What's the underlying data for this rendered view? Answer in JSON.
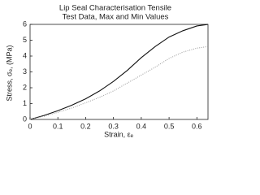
{
  "chart_data": {
    "type": "line",
    "title": [
      "Lip Seal Characterisation Tensile",
      "Test Data, Max and Min Values"
    ],
    "x_label": "Strain, εₑ",
    "y_label": "Stress, σₑ, (MPa)",
    "x": [
      0,
      0.05,
      0.1,
      0.15,
      0.2,
      0.25,
      0.3,
      0.35,
      0.4,
      0.45,
      0.5,
      0.55,
      0.6,
      0.64
    ],
    "series": [
      {
        "color": "#111111",
        "style": "solid",
        "values": [
          0,
          0.25,
          0.55,
          0.9,
          1.3,
          1.8,
          2.4,
          3.1,
          3.9,
          4.6,
          5.2,
          5.6,
          5.9,
          6.0
        ]
      },
      {
        "color": "#999999",
        "style": "dotted",
        "values": [
          0,
          0.2,
          0.45,
          0.72,
          1.05,
          1.4,
          1.8,
          2.3,
          2.8,
          3.3,
          3.85,
          4.25,
          4.5,
          4.6
        ]
      }
    ],
    "xlim": [
      0,
      0.64
    ],
    "xticks": [
      0,
      0.1,
      0.2,
      0.3,
      0.4,
      0.5,
      0.6
    ],
    "ylim": [
      0,
      6
    ],
    "yticks": [
      0,
      1,
      2,
      3,
      4,
      5,
      6
    ],
    "grid": false
  }
}
